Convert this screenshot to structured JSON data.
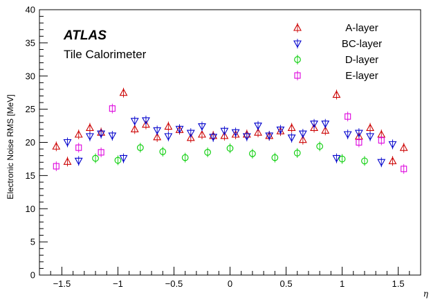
{
  "chart_data": {
    "type": "scatter",
    "xlabel": "η",
    "ylabel": "Electronic Noise RMS [MeV]",
    "xlim": [
      -1.7,
      1.7
    ],
    "ylim": [
      0,
      40
    ],
    "xticks": [
      -1.5,
      -1,
      -0.5,
      0,
      0.5,
      1,
      1.5
    ],
    "xtick_labels": [
      "−1.5",
      "−1",
      "−0.5",
      "0",
      "0.5",
      "1",
      "1.5"
    ],
    "yticks": [
      0,
      5,
      10,
      15,
      20,
      25,
      30,
      35,
      40
    ],
    "ytick_labels": [
      "0",
      "5",
      "10",
      "15",
      "20",
      "25",
      "30",
      "35",
      "40"
    ],
    "grid": false,
    "legend_position": "top-right",
    "annotations": {
      "experiment": "ATLAS",
      "detector": "Tile Calorimeter"
    },
    "series": [
      {
        "name": "A-layer",
        "marker": "triangle-up",
        "color": "#cc0000",
        "points": [
          [
            -1.55,
            19.4
          ],
          [
            -1.45,
            17.1
          ],
          [
            -1.35,
            21.2
          ],
          [
            -1.25,
            22.2
          ],
          [
            -1.15,
            21.5
          ],
          [
            -0.95,
            27.5
          ],
          [
            -0.85,
            22.0
          ],
          [
            -0.75,
            22.7
          ],
          [
            -0.65,
            20.8
          ],
          [
            -0.55,
            22.4
          ],
          [
            -0.45,
            21.9
          ],
          [
            -0.35,
            20.7
          ],
          [
            -0.25,
            21.2
          ],
          [
            -0.15,
            21.0
          ],
          [
            -0.05,
            21.0
          ],
          [
            0.05,
            21.2
          ],
          [
            0.15,
            21.2
          ],
          [
            0.25,
            21.5
          ],
          [
            0.35,
            21.0
          ],
          [
            0.45,
            21.7
          ],
          [
            0.55,
            22.2
          ],
          [
            0.65,
            20.4
          ],
          [
            0.75,
            22.2
          ],
          [
            0.85,
            21.8
          ],
          [
            0.95,
            27.2
          ],
          [
            1.15,
            20.9
          ],
          [
            1.25,
            22.2
          ],
          [
            1.35,
            21.2
          ],
          [
            1.45,
            17.2
          ],
          [
            1.55,
            19.2
          ]
        ]
      },
      {
        "name": "BC-layer",
        "marker": "triangle-down",
        "color": "#0000cc",
        "points": [
          [
            -1.45,
            20.0
          ],
          [
            -1.35,
            17.2
          ],
          [
            -1.25,
            20.9
          ],
          [
            -1.15,
            21.3
          ],
          [
            -1.05,
            21.0
          ],
          [
            -0.95,
            17.6
          ],
          [
            -0.85,
            23.2
          ],
          [
            -0.75,
            23.3
          ],
          [
            -0.65,
            21.8
          ],
          [
            -0.55,
            20.9
          ],
          [
            -0.45,
            22.0
          ],
          [
            -0.35,
            21.4
          ],
          [
            -0.25,
            22.4
          ],
          [
            -0.15,
            20.8
          ],
          [
            -0.05,
            21.7
          ],
          [
            0.05,
            21.5
          ],
          [
            0.15,
            20.9
          ],
          [
            0.25,
            22.5
          ],
          [
            0.35,
            21.0
          ],
          [
            0.45,
            21.9
          ],
          [
            0.55,
            20.7
          ],
          [
            0.65,
            21.3
          ],
          [
            0.75,
            22.8
          ],
          [
            0.85,
            22.8
          ],
          [
            0.95,
            17.6
          ],
          [
            1.05,
            21.2
          ],
          [
            1.15,
            21.4
          ],
          [
            1.25,
            20.9
          ],
          [
            1.35,
            17.0
          ],
          [
            1.45,
            19.7
          ]
        ]
      },
      {
        "name": "D-layer",
        "marker": "circle",
        "color": "#00cc00",
        "points": [
          [
            -1.2,
            17.6
          ],
          [
            -1.0,
            17.3
          ],
          [
            -0.8,
            19.2
          ],
          [
            -0.6,
            18.6
          ],
          [
            -0.4,
            17.7
          ],
          [
            -0.2,
            18.5
          ],
          [
            0.0,
            19.1
          ],
          [
            0.2,
            18.3
          ],
          [
            0.4,
            17.7
          ],
          [
            0.6,
            18.4
          ],
          [
            0.8,
            19.4
          ],
          [
            1.0,
            17.5
          ],
          [
            1.2,
            17.2
          ]
        ]
      },
      {
        "name": "E-layer",
        "marker": "square",
        "color": "#dd00dd",
        "points": [
          [
            -1.55,
            16.4
          ],
          [
            -1.35,
            19.2
          ],
          [
            -1.15,
            18.5
          ],
          [
            -1.05,
            25.1
          ],
          [
            1.05,
            23.9
          ],
          [
            1.15,
            20.0
          ],
          [
            1.35,
            20.3
          ],
          [
            1.55,
            16.0
          ]
        ]
      }
    ]
  }
}
